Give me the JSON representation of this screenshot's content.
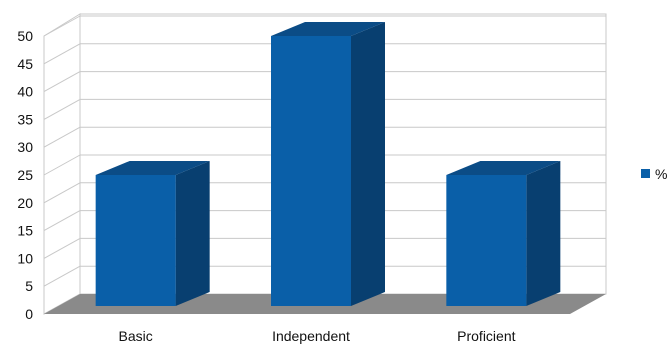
{
  "chart_data": {
    "type": "bar",
    "style": "3d",
    "categories": [
      "Basic",
      "Independent",
      "Proficient"
    ],
    "series": [
      {
        "name": "%",
        "values": [
          25,
          50,
          25
        ]
      }
    ],
    "ylim": [
      0,
      50
    ],
    "yticks": [
      0,
      5,
      10,
      15,
      20,
      25,
      30,
      35,
      40,
      45,
      50
    ],
    "grid": true,
    "legend": "right",
    "colors": {
      "bar_front": "#0a5fa8",
      "bar_side": "#083f70",
      "bar_top": "#0b4c86",
      "floor": "#8a8a8a",
      "grid": "#c8c8c8",
      "wall": "#ffffff"
    }
  }
}
